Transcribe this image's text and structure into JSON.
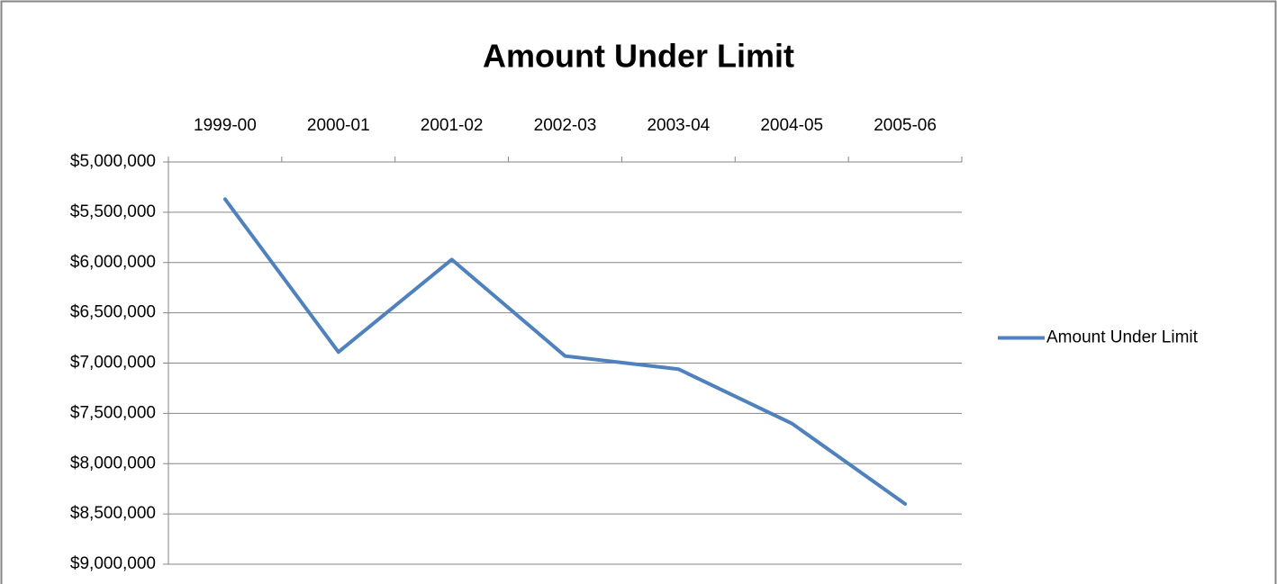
{
  "chart_data": {
    "type": "line",
    "title": "Amount Under Limit",
    "categories": [
      "1999-00",
      "2000-01",
      "2001-02",
      "2002-03",
      "2003-04",
      "2004-05",
      "2005-06"
    ],
    "series": [
      {
        "name": "Amount Under Limit",
        "color": "#4f81bd",
        "values": [
          5370000,
          6890000,
          5970000,
          6930000,
          7060000,
          7600000,
          8400000
        ]
      }
    ],
    "ylim": [
      5000000,
      9000000
    ],
    "yticks": [
      {
        "value": 5000000,
        "label": "$5,000,000"
      },
      {
        "value": 5500000,
        "label": "$5,500,000"
      },
      {
        "value": 6000000,
        "label": "$6,000,000"
      },
      {
        "value": 6500000,
        "label": "$6,500,000"
      },
      {
        "value": 7000000,
        "label": "$7,000,000"
      },
      {
        "value": 7500000,
        "label": "$7,500,000"
      },
      {
        "value": 8000000,
        "label": "$8,000,000"
      },
      {
        "value": 8500000,
        "label": "$8,500,000"
      },
      {
        "value": 9000000,
        "label": "$9,000,000"
      }
    ],
    "y_reversed": true,
    "x_axis_position": "top",
    "grid": true,
    "legend": "right"
  }
}
